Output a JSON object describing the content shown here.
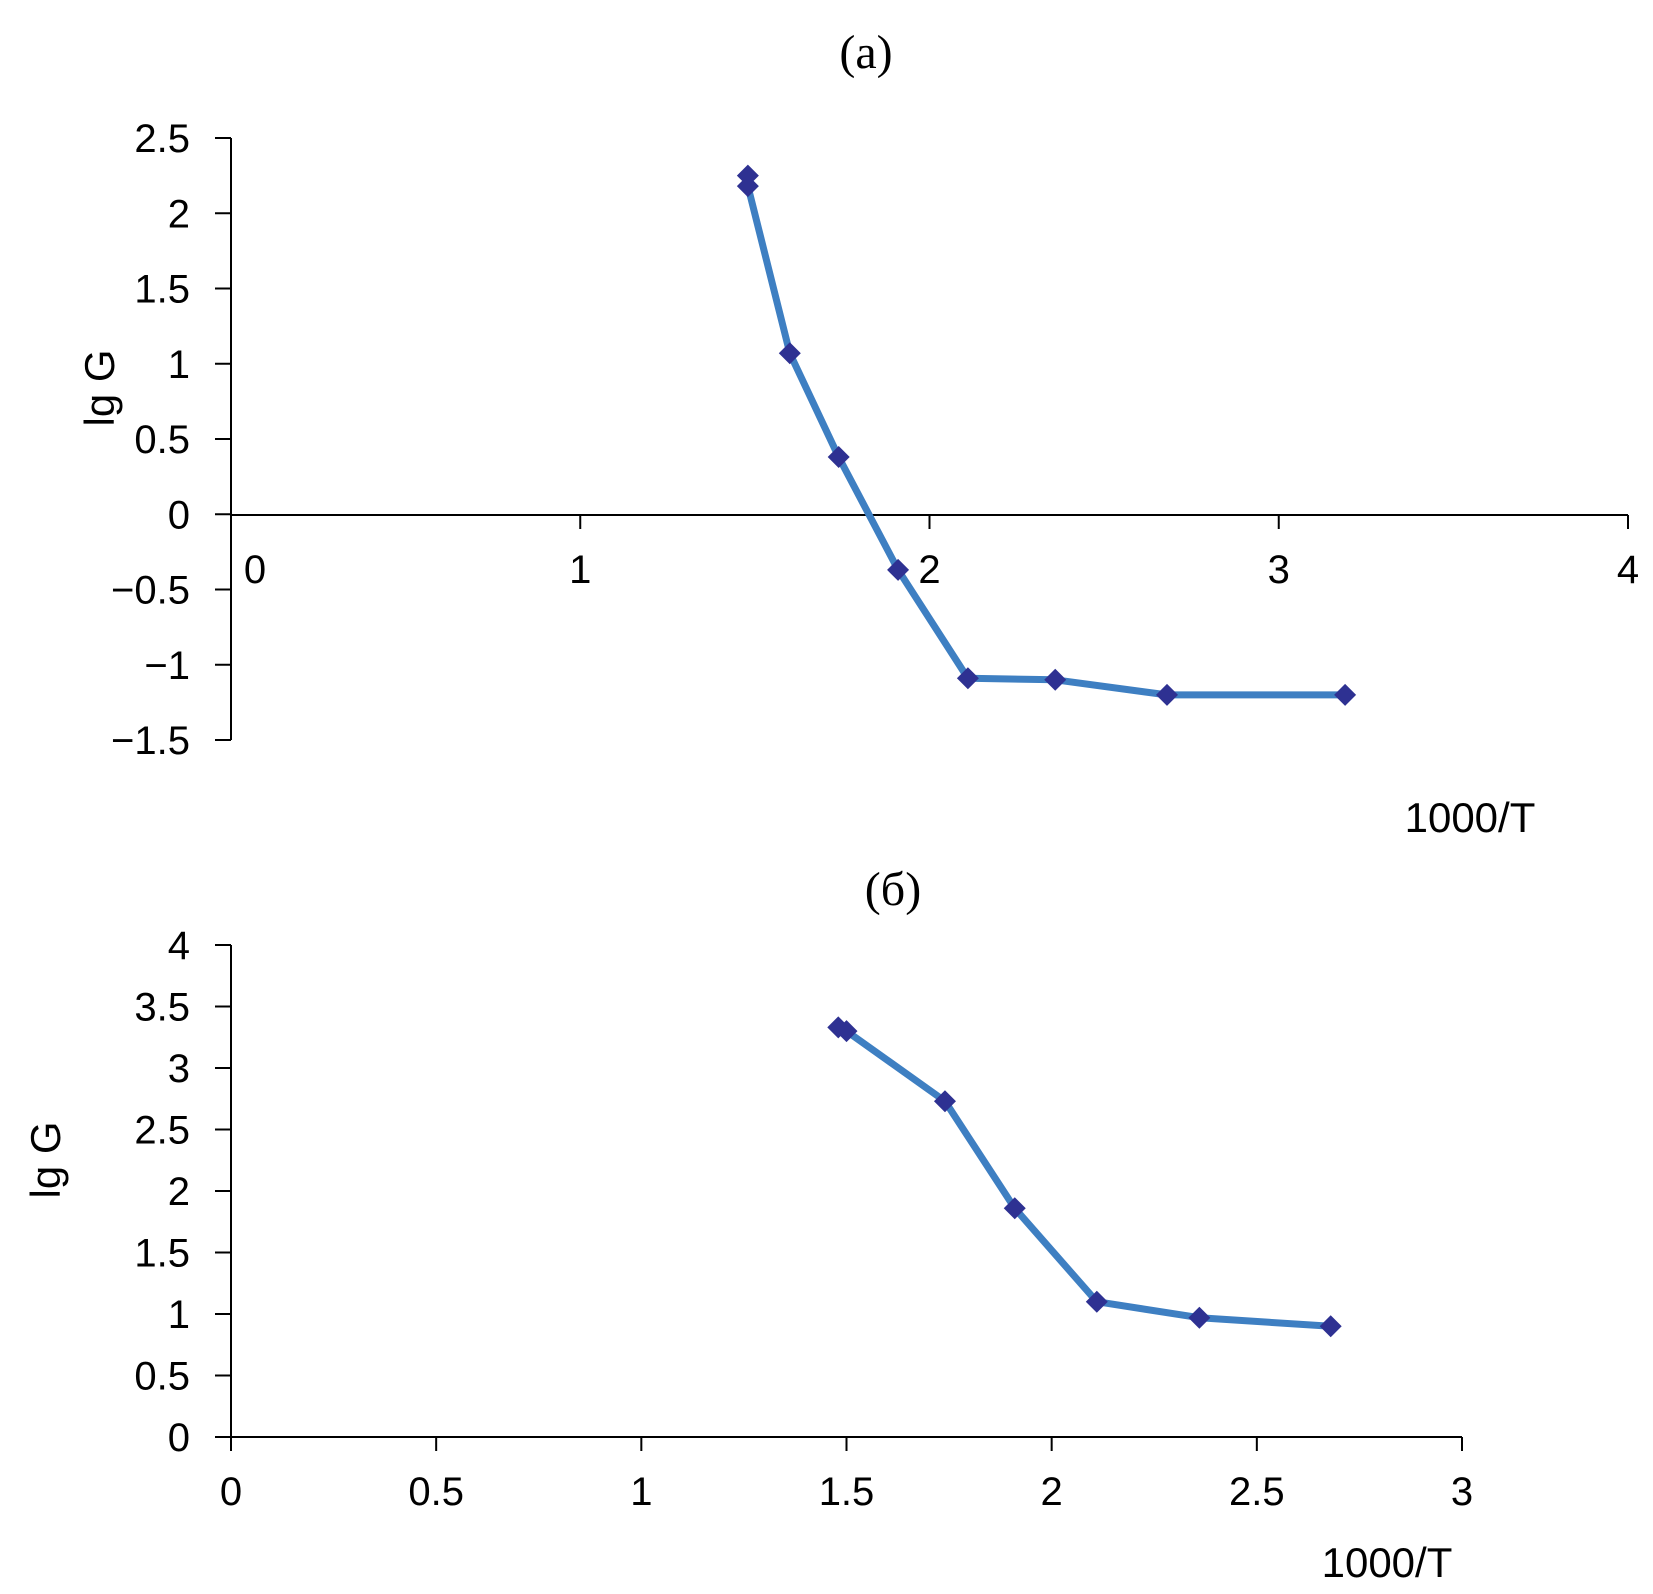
{
  "chart_data": [
    {
      "type": "line",
      "title": "(a)",
      "xlabel": "1000/T",
      "ylabel": "lg G",
      "xlim": [
        0,
        4
      ],
      "ylim": [
        -1.5,
        2.5
      ],
      "xticks": [
        "0",
        "1",
        "2",
        "3",
        "4"
      ],
      "yticks": [
        "−1.5",
        "−1",
        "−0.5",
        "0",
        "0.5",
        "1",
        "1.5",
        "2",
        "2.5"
      ],
      "grid": false,
      "series": [
        {
          "color": "#3e7fc2",
          "marker_color": "#2e3192",
          "marker": "diamond",
          "x": [
            1.48,
            1.48,
            1.6,
            1.74,
            1.91,
            2.11,
            2.36,
            2.68,
            3.19
          ],
          "y": [
            2.25,
            2.18,
            1.07,
            0.38,
            -0.37,
            -1.09,
            -1.1,
            -1.2,
            -1.2
          ]
        }
      ]
    },
    {
      "type": "line",
      "title": "(б)",
      "xlabel": "1000/T",
      "ylabel": "lg G",
      "xlim": [
        0,
        3
      ],
      "ylim": [
        0,
        4
      ],
      "xticks": [
        "0",
        "0.5",
        "1",
        "1.5",
        "2",
        "2.5",
        "3"
      ],
      "yticks": [
        "0",
        "0.5",
        "1",
        "1.5",
        "2",
        "2.5",
        "3",
        "3.5",
        "4"
      ],
      "grid": false,
      "series": [
        {
          "color": "#3e7fc2",
          "marker_color": "#2e3192",
          "marker": "diamond",
          "x": [
            1.48,
            1.5,
            1.74,
            1.91,
            2.11,
            2.36,
            2.68
          ],
          "y": [
            3.33,
            3.3,
            2.73,
            1.86,
            1.1,
            0.97,
            0.9
          ]
        }
      ]
    }
  ]
}
